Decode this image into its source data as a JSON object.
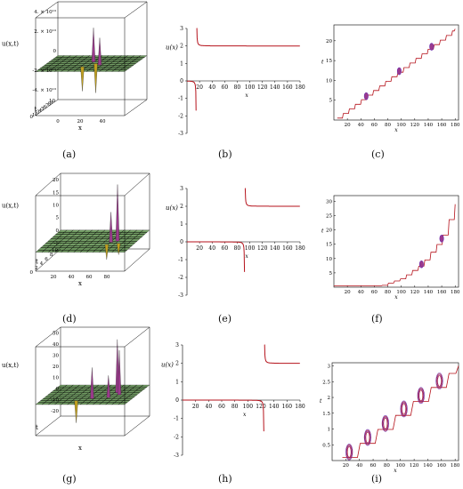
{
  "captions": [
    "(a)",
    "(b)",
    "(c)",
    "(d)",
    "(e)",
    "(f)",
    "(g)",
    "(h)",
    "(i)"
  ],
  "colors": {
    "curve": "#b5121b",
    "surface_low": "#c0a020",
    "surface_mid": "#5a8c4a",
    "surface_high": "#9b3a8c",
    "spiral": "#6a2bb0"
  },
  "chart_data": [
    {
      "id": "a",
      "type": "surface3d",
      "zlabel": "u(x,t)",
      "xlabel": "x",
      "ylabel": "t",
      "z_ticks": [
        "4. × 10¹³",
        "2. × 10¹³",
        "0",
        "-2. × 10¹³",
        "-4. × 10¹³"
      ],
      "t_ticks": [
        "10",
        "9",
        "8",
        "7",
        "6",
        "5",
        "4",
        "3",
        "2",
        "1",
        "0"
      ],
      "x_ticks": [
        "0",
        "20",
        "40"
      ]
    },
    {
      "id": "b",
      "type": "line",
      "xlabel": "x",
      "ylabel": "u(x)",
      "x_ticks": [
        "20",
        "40",
        "60",
        "80",
        "100",
        "120",
        "140",
        "160",
        "180"
      ],
      "y_ticks": [
        "3",
        "2",
        "1",
        "0",
        "-1",
        "-2",
        "-3"
      ],
      "xlim": [
        0,
        180
      ],
      "ylim": [
        -3,
        3
      ],
      "series": [
        {
          "asymptote_x": 15,
          "right_level": 2,
          "left_level": 0
        }
      ]
    },
    {
      "id": "c",
      "type": "line",
      "xlabel": "x",
      "ylabel": "t",
      "x_ticks": [
        "20",
        "40",
        "60",
        "80",
        "100",
        "120",
        "140",
        "160",
        "180"
      ],
      "y_ticks": [
        "20",
        "15",
        "10",
        "5"
      ],
      "xlim": [
        0,
        185
      ],
      "ylim": [
        0,
        24
      ],
      "series": [
        {
          "x": [
            5,
            180
          ],
          "y": [
            0.5,
            23
          ]
        }
      ]
    },
    {
      "id": "d",
      "type": "surface3d",
      "zlabel": "u(x,t)",
      "xlabel": "x",
      "ylabel": "t",
      "z_ticks": [
        "20",
        "15",
        "10",
        "5",
        "0",
        "-5"
      ],
      "t_ticks": [
        "10",
        "8",
        "6",
        "4",
        "2",
        "0"
      ],
      "x_ticks": [
        "20",
        "40",
        "60",
        "80"
      ]
    },
    {
      "id": "e",
      "type": "line",
      "xlabel": "x",
      "ylabel": "u(x)",
      "x_ticks": [
        "20",
        "40",
        "60",
        "80",
        "100",
        "120",
        "140",
        "160",
        "180"
      ],
      "y_ticks": [
        "3",
        "2",
        "1",
        "0",
        "-1",
        "-2",
        "-3"
      ],
      "xlim": [
        0,
        180
      ],
      "ylim": [
        -3,
        3
      ],
      "series": [
        {
          "asymptote_x": 92,
          "right_level": 2,
          "left_level": 0
        }
      ]
    },
    {
      "id": "f",
      "type": "line",
      "xlabel": "x",
      "ylabel": "t",
      "x_ticks": [
        "20",
        "40",
        "60",
        "80",
        "100",
        "120",
        "140",
        "160",
        "180"
      ],
      "y_ticks": [
        "30",
        "25",
        "20",
        "15",
        "10",
        "5"
      ],
      "xlim": [
        0,
        185
      ],
      "ylim": [
        0,
        32
      ],
      "series": [
        {
          "x": [
            0,
            70,
            100,
            130,
            160,
            180
          ],
          "y": [
            0.5,
            0.5,
            3,
            8,
            17,
            29
          ]
        }
      ]
    },
    {
      "id": "g",
      "type": "surface3d",
      "zlabel": "u(x,t)",
      "xlabel": "x",
      "ylabel": "t",
      "z_ticks": [
        "50",
        "40",
        "30",
        "20",
        "10",
        "0",
        "-10",
        "-20"
      ],
      "t_ticks": [],
      "x_ticks": []
    },
    {
      "id": "h",
      "type": "line",
      "xlabel": "x",
      "ylabel": "u(x)",
      "x_ticks": [
        "20",
        "40",
        "60",
        "80",
        "100",
        "120",
        "140",
        "160",
        "180"
      ],
      "y_ticks": [
        "3",
        "2",
        "1",
        "0",
        "-1",
        "-2",
        "-3"
      ],
      "xlim": [
        0,
        180
      ],
      "ylim": [
        -3,
        3
      ],
      "series": [
        {
          "asymptote_x": 125,
          "right_level": 2,
          "left_level": 0
        }
      ]
    },
    {
      "id": "i",
      "type": "line",
      "xlabel": "x",
      "ylabel": "t",
      "x_ticks": [
        "20",
        "40",
        "60",
        "80",
        "100",
        "120",
        "140",
        "160",
        "180"
      ],
      "y_ticks": [
        "3",
        "2.5",
        "2",
        "1.5",
        "1",
        "0.5"
      ],
      "xlim": [
        0,
        185
      ],
      "ylim": [
        0,
        3.1
      ],
      "series": [
        {
          "x": [
            15,
            185
          ],
          "y": [
            0.1,
            3
          ]
        }
      ]
    }
  ]
}
